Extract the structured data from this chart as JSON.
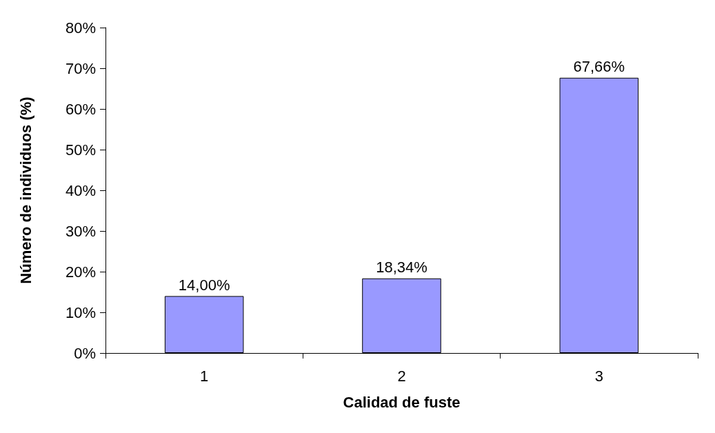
{
  "chart_data": {
    "type": "bar",
    "xlabel": "Calidad de fuste",
    "ylabel": "Número de individuos (%)",
    "categories": [
      "1",
      "2",
      "3"
    ],
    "values": [
      14.0,
      18.34,
      67.66
    ],
    "value_labels": [
      "14,00%",
      "18,34%",
      "67,66%"
    ],
    "color": "#9999ff",
    "ylim": [
      0,
      80
    ],
    "yticks": [
      {
        "value": 0,
        "label": "0%"
      },
      {
        "value": 10,
        "label": "10%"
      },
      {
        "value": 20,
        "label": "20%"
      },
      {
        "value": 30,
        "label": "30%"
      },
      {
        "value": 40,
        "label": "40%"
      },
      {
        "value": 50,
        "label": "50%"
      },
      {
        "value": 60,
        "label": "60%"
      },
      {
        "value": 70,
        "label": "70%"
      },
      {
        "value": 80,
        "label": "80%"
      }
    ],
    "grid": false
  }
}
